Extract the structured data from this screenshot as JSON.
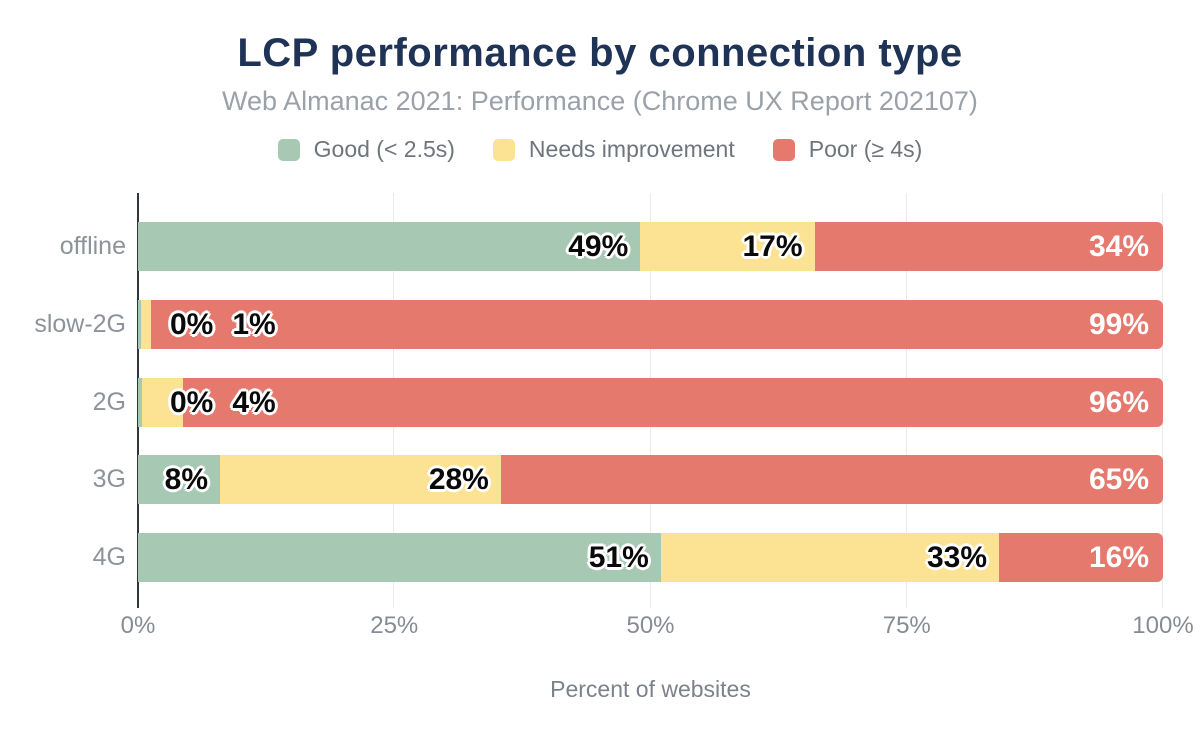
{
  "chart_data": {
    "type": "bar",
    "orientation": "horizontal-stacked",
    "title": "LCP performance by connection type",
    "subtitle": "Web Almanac 2021: Performance (Chrome UX Report 202107)",
    "xlabel": "Percent of websites",
    "x_ticks": [
      "0%",
      "25%",
      "50%",
      "75%",
      "100%"
    ],
    "x_tick_positions": [
      0,
      25,
      50,
      75,
      100
    ],
    "xlim": [
      0,
      100
    ],
    "grid": "vertical-light",
    "legend_position": "top-center",
    "categories": [
      "offline",
      "slow-2G",
      "2G",
      "3G",
      "4G"
    ],
    "series": [
      {
        "name": "Good (< 2.5s)",
        "key": "good",
        "color": "#a7c9b4",
        "values": [
          49,
          0,
          0,
          8,
          51
        ]
      },
      {
        "name": "Needs improvement",
        "key": "ni",
        "color": "#fce393",
        "values": [
          17,
          1,
          4,
          28,
          33
        ]
      },
      {
        "name": "Poor (≥ 4s)",
        "key": "poor",
        "color": "#e5796e",
        "values": [
          34,
          99,
          96,
          65,
          16
        ]
      }
    ],
    "render_widths": [
      [
        49,
        17,
        34
      ],
      [
        0.25,
        1.0,
        98.75
      ],
      [
        0.4,
        4.0,
        95.6
      ],
      [
        8,
        27.4,
        64.6
      ],
      [
        51,
        33,
        16
      ]
    ],
    "label_style": {
      "good": "black-outlined",
      "ni": "black-outlined",
      "poor": "white-right"
    }
  },
  "colors": {
    "title": "#1f3356",
    "subtitle": "#9ba1a8",
    "legend_text": "#6f757c",
    "category_text": "#8d939a",
    "tick_text": "#868c93",
    "axis_line": "#333638",
    "gridline": "#e9eaeb",
    "background": "#ffffff"
  }
}
